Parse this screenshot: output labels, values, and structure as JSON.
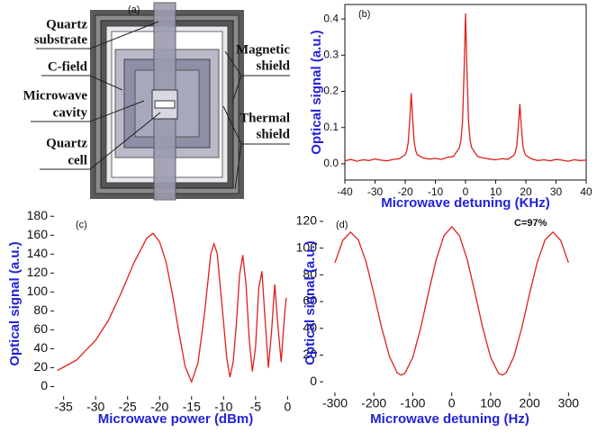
{
  "diagram": {
    "panel_label": "(a)",
    "labels": [
      [
        "Quartz",
        "substrate"
      ],
      [
        "C-field"
      ],
      [
        "Microwave",
        "cavity"
      ],
      [
        "Quartz",
        "cell"
      ],
      [
        "Magnetic",
        "shield"
      ],
      [
        "Thermal",
        "shield"
      ]
    ]
  },
  "chart_data": [
    {
      "type": "line",
      "panel_label": "(b)",
      "x_label": "Microwave detuning (KHz)",
      "y_label": "Optical signal (a.u.)",
      "color": "#e0201b",
      "frame": true,
      "x": [
        -40,
        -38,
        -36,
        -34,
        -32,
        -30,
        -28,
        -26,
        -24,
        -22,
        -20,
        -19.5,
        -19,
        -18.5,
        -18,
        -17.5,
        -17,
        -16.5,
        -16,
        -14,
        -12,
        -10,
        -8,
        -6,
        -4,
        -2,
        -1.5,
        -1,
        -0.5,
        0,
        0.5,
        1,
        1.5,
        2,
        4,
        6,
        8,
        10,
        12,
        14,
        16,
        16.5,
        17,
        17.5,
        18,
        18.5,
        19,
        19.5,
        20,
        22,
        24,
        26,
        28,
        30,
        32,
        34,
        36,
        38,
        40
      ],
      "values": [
        0.008,
        0.012,
        0.007,
        0.011,
        0.009,
        0.013,
        0.01,
        0.008,
        0.012,
        0.014,
        0.025,
        0.036,
        0.059,
        0.119,
        0.195,
        0.119,
        0.059,
        0.036,
        0.025,
        0.016,
        0.013,
        0.015,
        0.012,
        0.018,
        0.02,
        0.045,
        0.066,
        0.117,
        0.249,
        0.415,
        0.249,
        0.117,
        0.066,
        0.045,
        0.02,
        0.016,
        0.013,
        0.011,
        0.014,
        0.012,
        0.023,
        0.031,
        0.051,
        0.102,
        0.165,
        0.102,
        0.051,
        0.031,
        0.023,
        0.013,
        0.009,
        0.011,
        0.008,
        0.012,
        0.01,
        0.007,
        0.011,
        0.009,
        0.01
      ],
      "xlim": [
        -40,
        40
      ],
      "ylim": [
        -0.045,
        0.44
      ],
      "xticks": [
        -40,
        -30,
        -20,
        -10,
        0,
        10,
        20,
        30,
        40
      ],
      "yticks": [
        {
          "value": 0,
          "label": "0.0"
        },
        0.1,
        0.2,
        0.3,
        0.4
      ]
    },
    {
      "type": "line",
      "panel_label": "(c)",
      "x_label": "Microwave power (dBm)",
      "y_label": "Optical signal (a.u.)",
      "color": "#e0201b",
      "frame": false,
      "x": [
        -36,
        -33,
        -30,
        -28,
        -26,
        -24,
        -22,
        -21,
        -20,
        -19,
        -18,
        -17,
        -16,
        -15,
        -14,
        -13,
        -12,
        -11.5,
        -11,
        -10,
        -9.5,
        -9,
        -8.5,
        -8,
        -7.5,
        -7,
        -6.5,
        -6,
        -5.5,
        -5,
        -4.5,
        -4,
        -3.5,
        -3,
        -2.5,
        -2,
        -1.5,
        -1,
        -0.5,
        -0.2
      ],
      "values": [
        17,
        28,
        49,
        70,
        99,
        131,
        157,
        162,
        153,
        132,
        98,
        58,
        21,
        5,
        25,
        76,
        140,
        151,
        141,
        68,
        30,
        10,
        26,
        66,
        118,
        139,
        109,
        51,
        16,
        42,
        104,
        122,
        70,
        20,
        58,
        108,
        64,
        26,
        73,
        94
      ],
      "xlim": [
        -36.5,
        1.5
      ],
      "ylim": [
        -10,
        185
      ],
      "xticks": [
        -35,
        -30,
        -25,
        -20,
        -15,
        -10,
        -5,
        0
      ],
      "yticks": [
        0,
        20,
        40,
        60,
        80,
        100,
        120,
        140,
        160,
        180
      ]
    },
    {
      "type": "line",
      "panel_label": "(d)",
      "annotation": "C=97%",
      "x_label": "Microwave detuning (Hz)",
      "y_label": "Optical signal (a.u.)",
      "color": "#e0201b",
      "frame": false,
      "x": [
        -300,
        -280,
        -260,
        -240,
        -220,
        -200,
        -180,
        -160,
        -140,
        -130,
        -120,
        -100,
        -80,
        -60,
        -40,
        -20,
        0,
        20,
        40,
        60,
        80,
        100,
        120,
        130,
        140,
        160,
        180,
        200,
        220,
        240,
        260,
        280,
        300
      ],
      "values": [
        89,
        105.7,
        112,
        106.2,
        89.7,
        65.9,
        40.4,
        19,
        6.7,
        5,
        6.4,
        18.3,
        39.9,
        66.2,
        91.2,
        109.2,
        116,
        109.2,
        91.2,
        66.2,
        39.9,
        18.3,
        6.4,
        5,
        6.7,
        19,
        40.4,
        65.9,
        89.7,
        106.2,
        112,
        105.7,
        89
      ],
      "xlim": [
        -330,
        320
      ],
      "ylim": [
        -8,
        126
      ],
      "xticks": [
        -300,
        -200,
        -100,
        0,
        100,
        200,
        300
      ],
      "yticks": [
        0,
        20,
        40,
        60,
        80,
        100,
        120
      ]
    }
  ]
}
